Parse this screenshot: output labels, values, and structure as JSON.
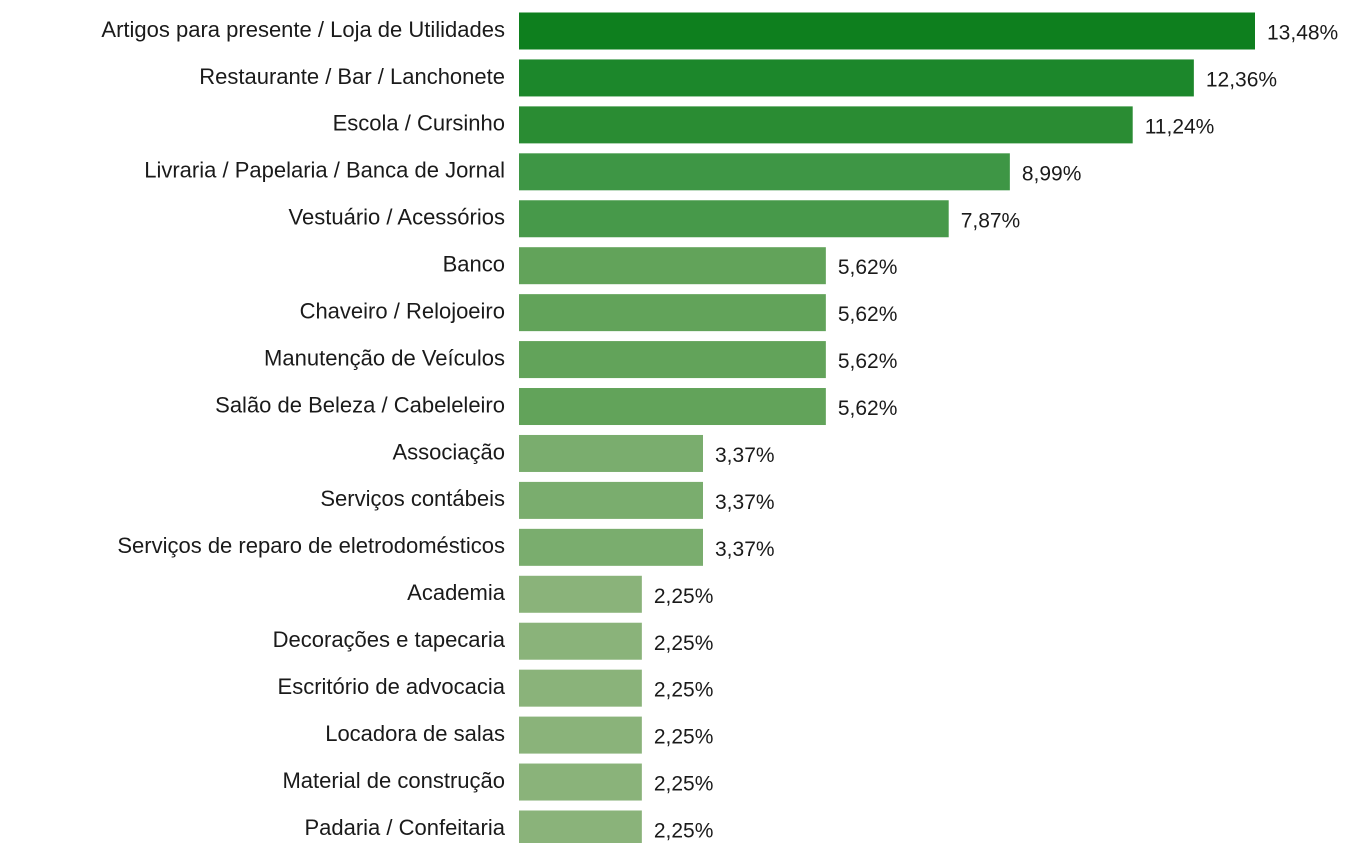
{
  "chart_data": {
    "type": "barh",
    "categories": [
      "Artigos para presente / Loja de Utilidades",
      "Restaurante / Bar / Lanchonete",
      "Escola / Cursinho",
      "Livraria / Papelaria / Banca de Jornal",
      "Vestuário / Acessórios",
      "Banco",
      "Chaveiro / Relojoeiro",
      "Manutenção de Veículos",
      "Salão de Beleza / Cabeleleiro",
      "Associação",
      "Serviços contábeis",
      "Serviços de reparo de eletrodomésticos",
      "Academia",
      "Decorações e tapecaria",
      "Escritório de advocacia",
      "Locadora de salas",
      "Material de construção",
      "Padaria / Confeitaria"
    ],
    "values": [
      13.48,
      12.36,
      11.24,
      8.99,
      7.87,
      5.62,
      5.62,
      5.62,
      5.62,
      3.37,
      3.37,
      3.37,
      2.25,
      2.25,
      2.25,
      2.25,
      2.25,
      2.25
    ],
    "value_labels": [
      "13,48%",
      "12,36%",
      "11,24%",
      "8,99%",
      "7,87%",
      "5,62%",
      "5,62%",
      "5,62%",
      "5,62%",
      "3,37%",
      "3,37%",
      "3,37%",
      "2,25%",
      "2,25%",
      "2,25%",
      "2,25%",
      "2,25%",
      "2,25%"
    ],
    "colors": [
      "#0e7f1e",
      "#1c872b",
      "#2a8c33",
      "#3e9645",
      "#47994a",
      "#62a35a",
      "#62a35a",
      "#62a35a",
      "#62a35a",
      "#7aad6e",
      "#7aad6e",
      "#7aad6e",
      "#8ab37a",
      "#8ab37a",
      "#8ab37a",
      "#8ab37a",
      "#8ab37a",
      "#8ab37a"
    ]
  }
}
